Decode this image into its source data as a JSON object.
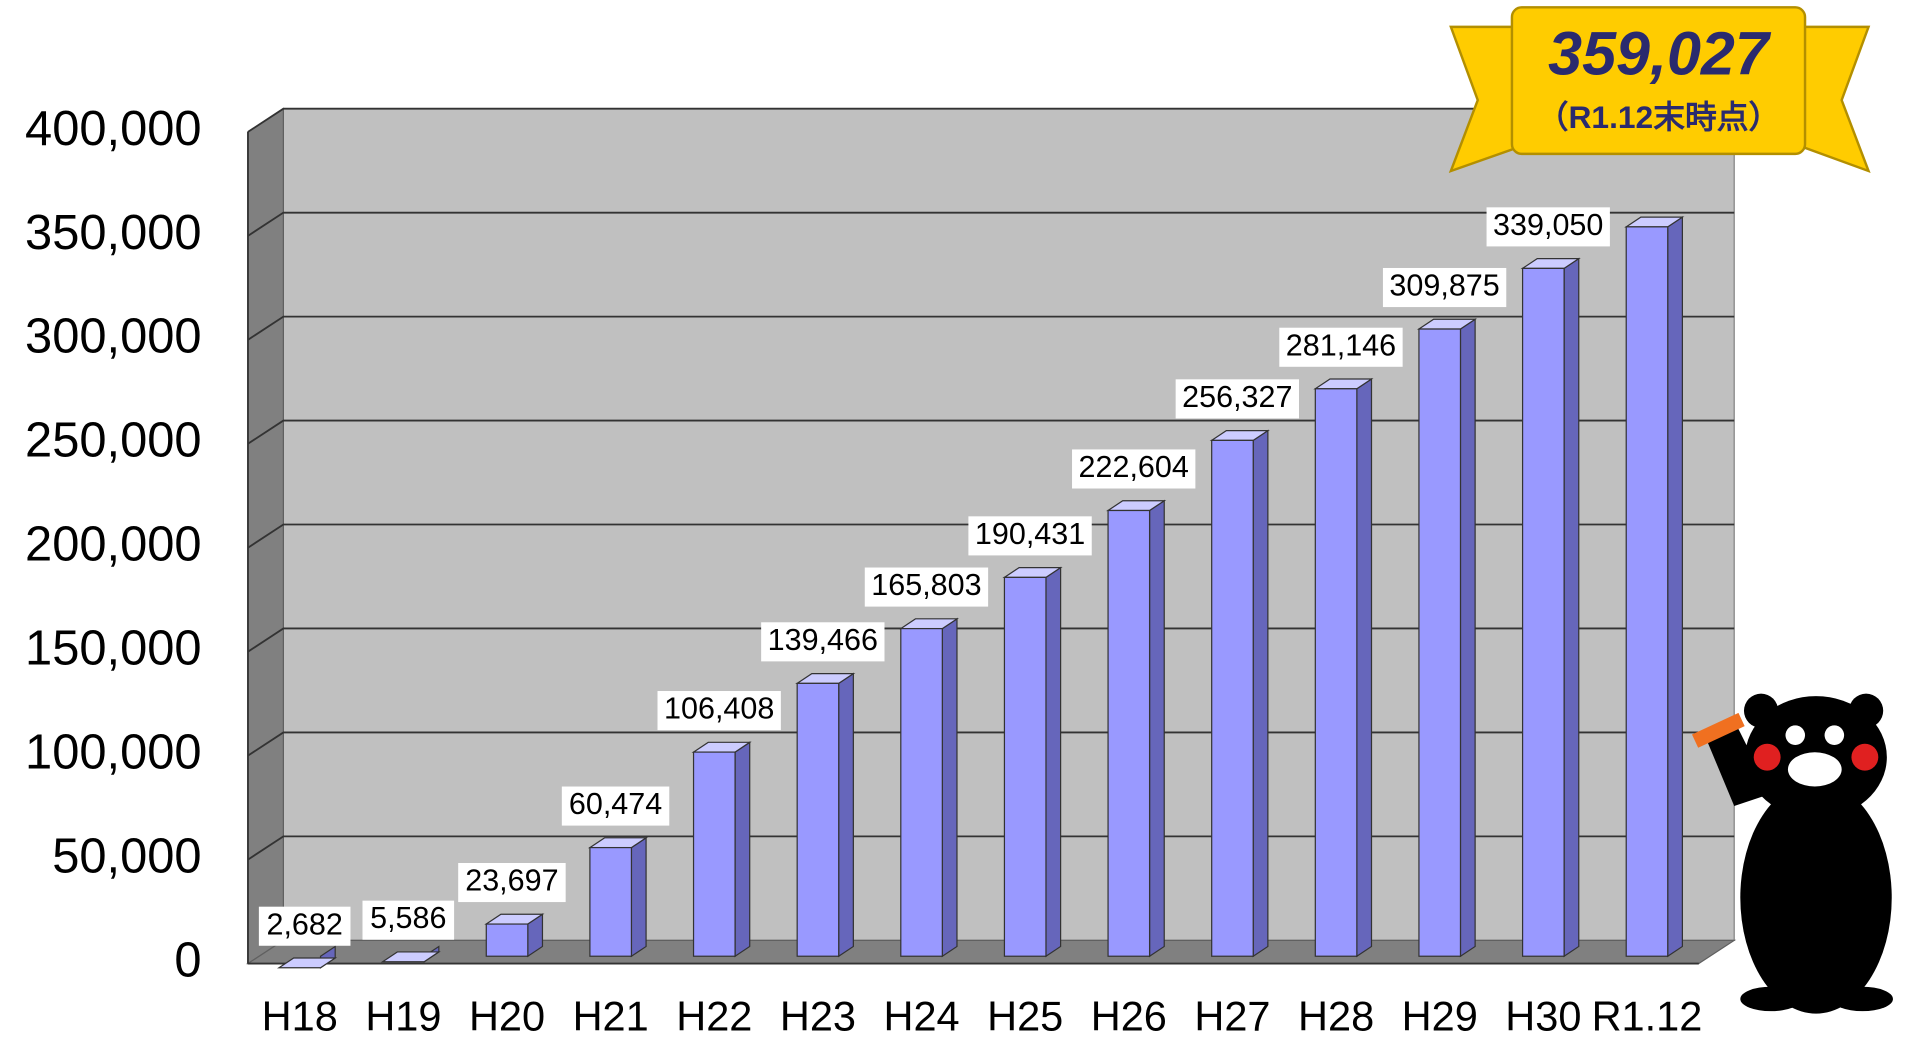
{
  "chart_data": {
    "type": "bar3d",
    "categories": [
      "H18",
      "H19",
      "H20",
      "H21",
      "H22",
      "H23",
      "H24",
      "H25",
      "H26",
      "H27",
      "H28",
      "H29",
      "H30",
      "R1.12"
    ],
    "values": [
      2682,
      5586,
      23697,
      60474,
      106408,
      139466,
      165803,
      190431,
      222604,
      256327,
      281146,
      309875,
      339050,
      359027
    ],
    "value_labels": [
      "2,682",
      "5,586",
      "23,697",
      "60,474",
      "106,408",
      "139,466",
      "165,803",
      "190,431",
      "222,604",
      "256,327",
      "281,146",
      "309,875",
      "339,050",
      "359,027"
    ],
    "annotation": "（R1.12末時点）",
    "color": "#9999ff",
    "ylim": [
      0,
      400000
    ],
    "yticks": [
      0,
      {
        "value": 50000,
        "label": "50,000"
      },
      {
        "value": 100000,
        "label": "100,000"
      },
      {
        "value": 150000,
        "label": "150,000"
      },
      {
        "value": 200000,
        "label": "200,000"
      },
      {
        "value": 250000,
        "label": "250,000"
      },
      {
        "value": 300000,
        "label": "300,000"
      },
      {
        "value": 350000,
        "label": "350,000"
      },
      {
        "value": 400000,
        "label": "400,000"
      }
    ],
    "grid": true
  }
}
